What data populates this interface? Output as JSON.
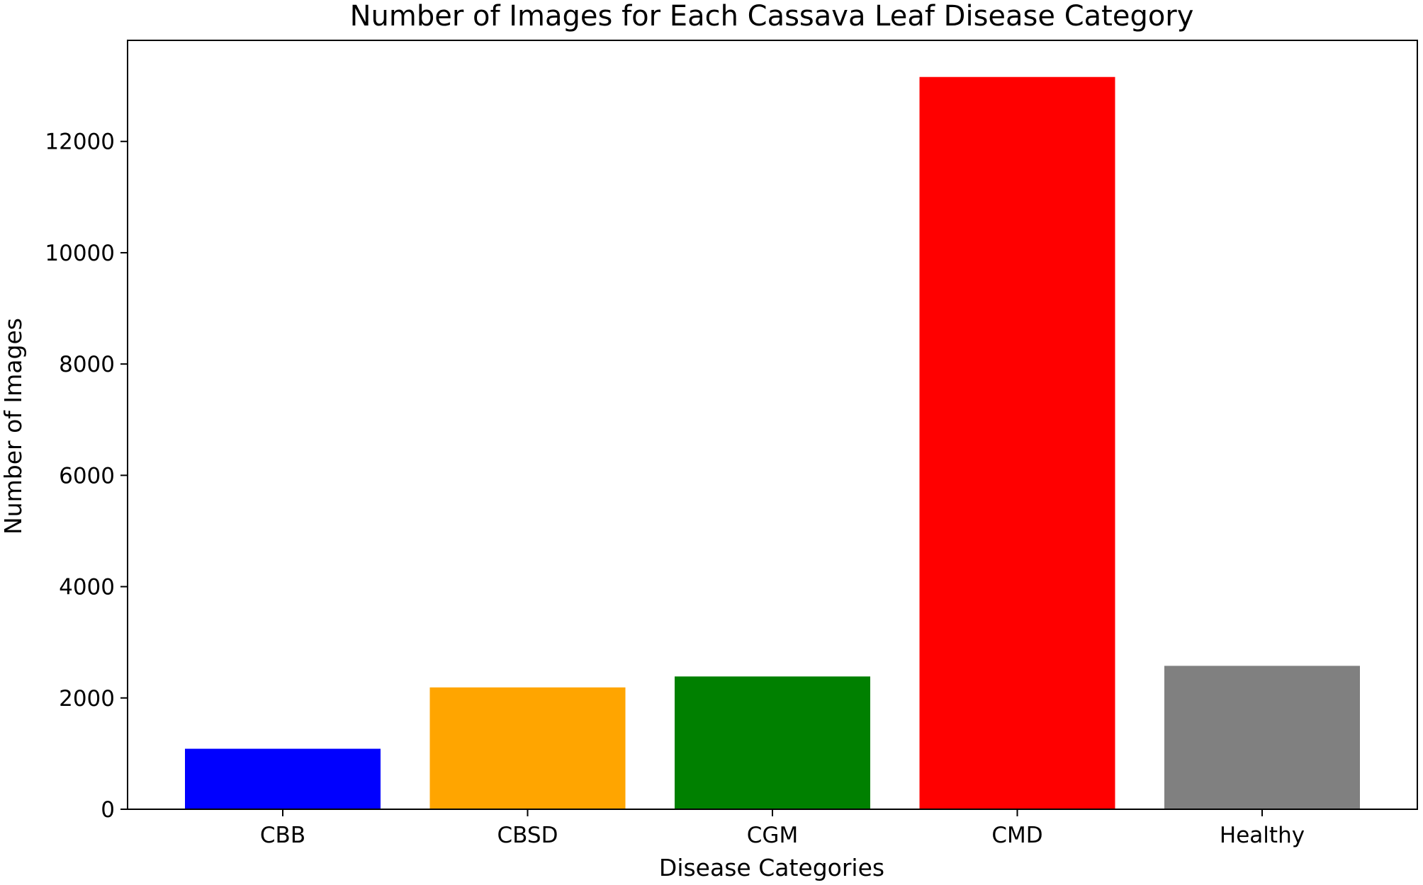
{
  "chart_data": {
    "type": "bar",
    "title": "Number of Images for Each Cassava Leaf Disease Category",
    "xlabel": "Disease Categories",
    "ylabel": "Number of Images",
    "categories": [
      "CBB",
      "CBSD",
      "CGM",
      "CMD",
      "Healthy"
    ],
    "values": [
      1087,
      2189,
      2386,
      13158,
      2577
    ],
    "colors": [
      "#0000ff",
      "#ffa500",
      "#008000",
      "#ff0000",
      "#808080"
    ],
    "yticks": [
      0,
      2000,
      4000,
      6000,
      8000,
      10000,
      12000
    ],
    "ylim": [
      0,
      13816
    ],
    "grid": false,
    "legend": "none"
  }
}
